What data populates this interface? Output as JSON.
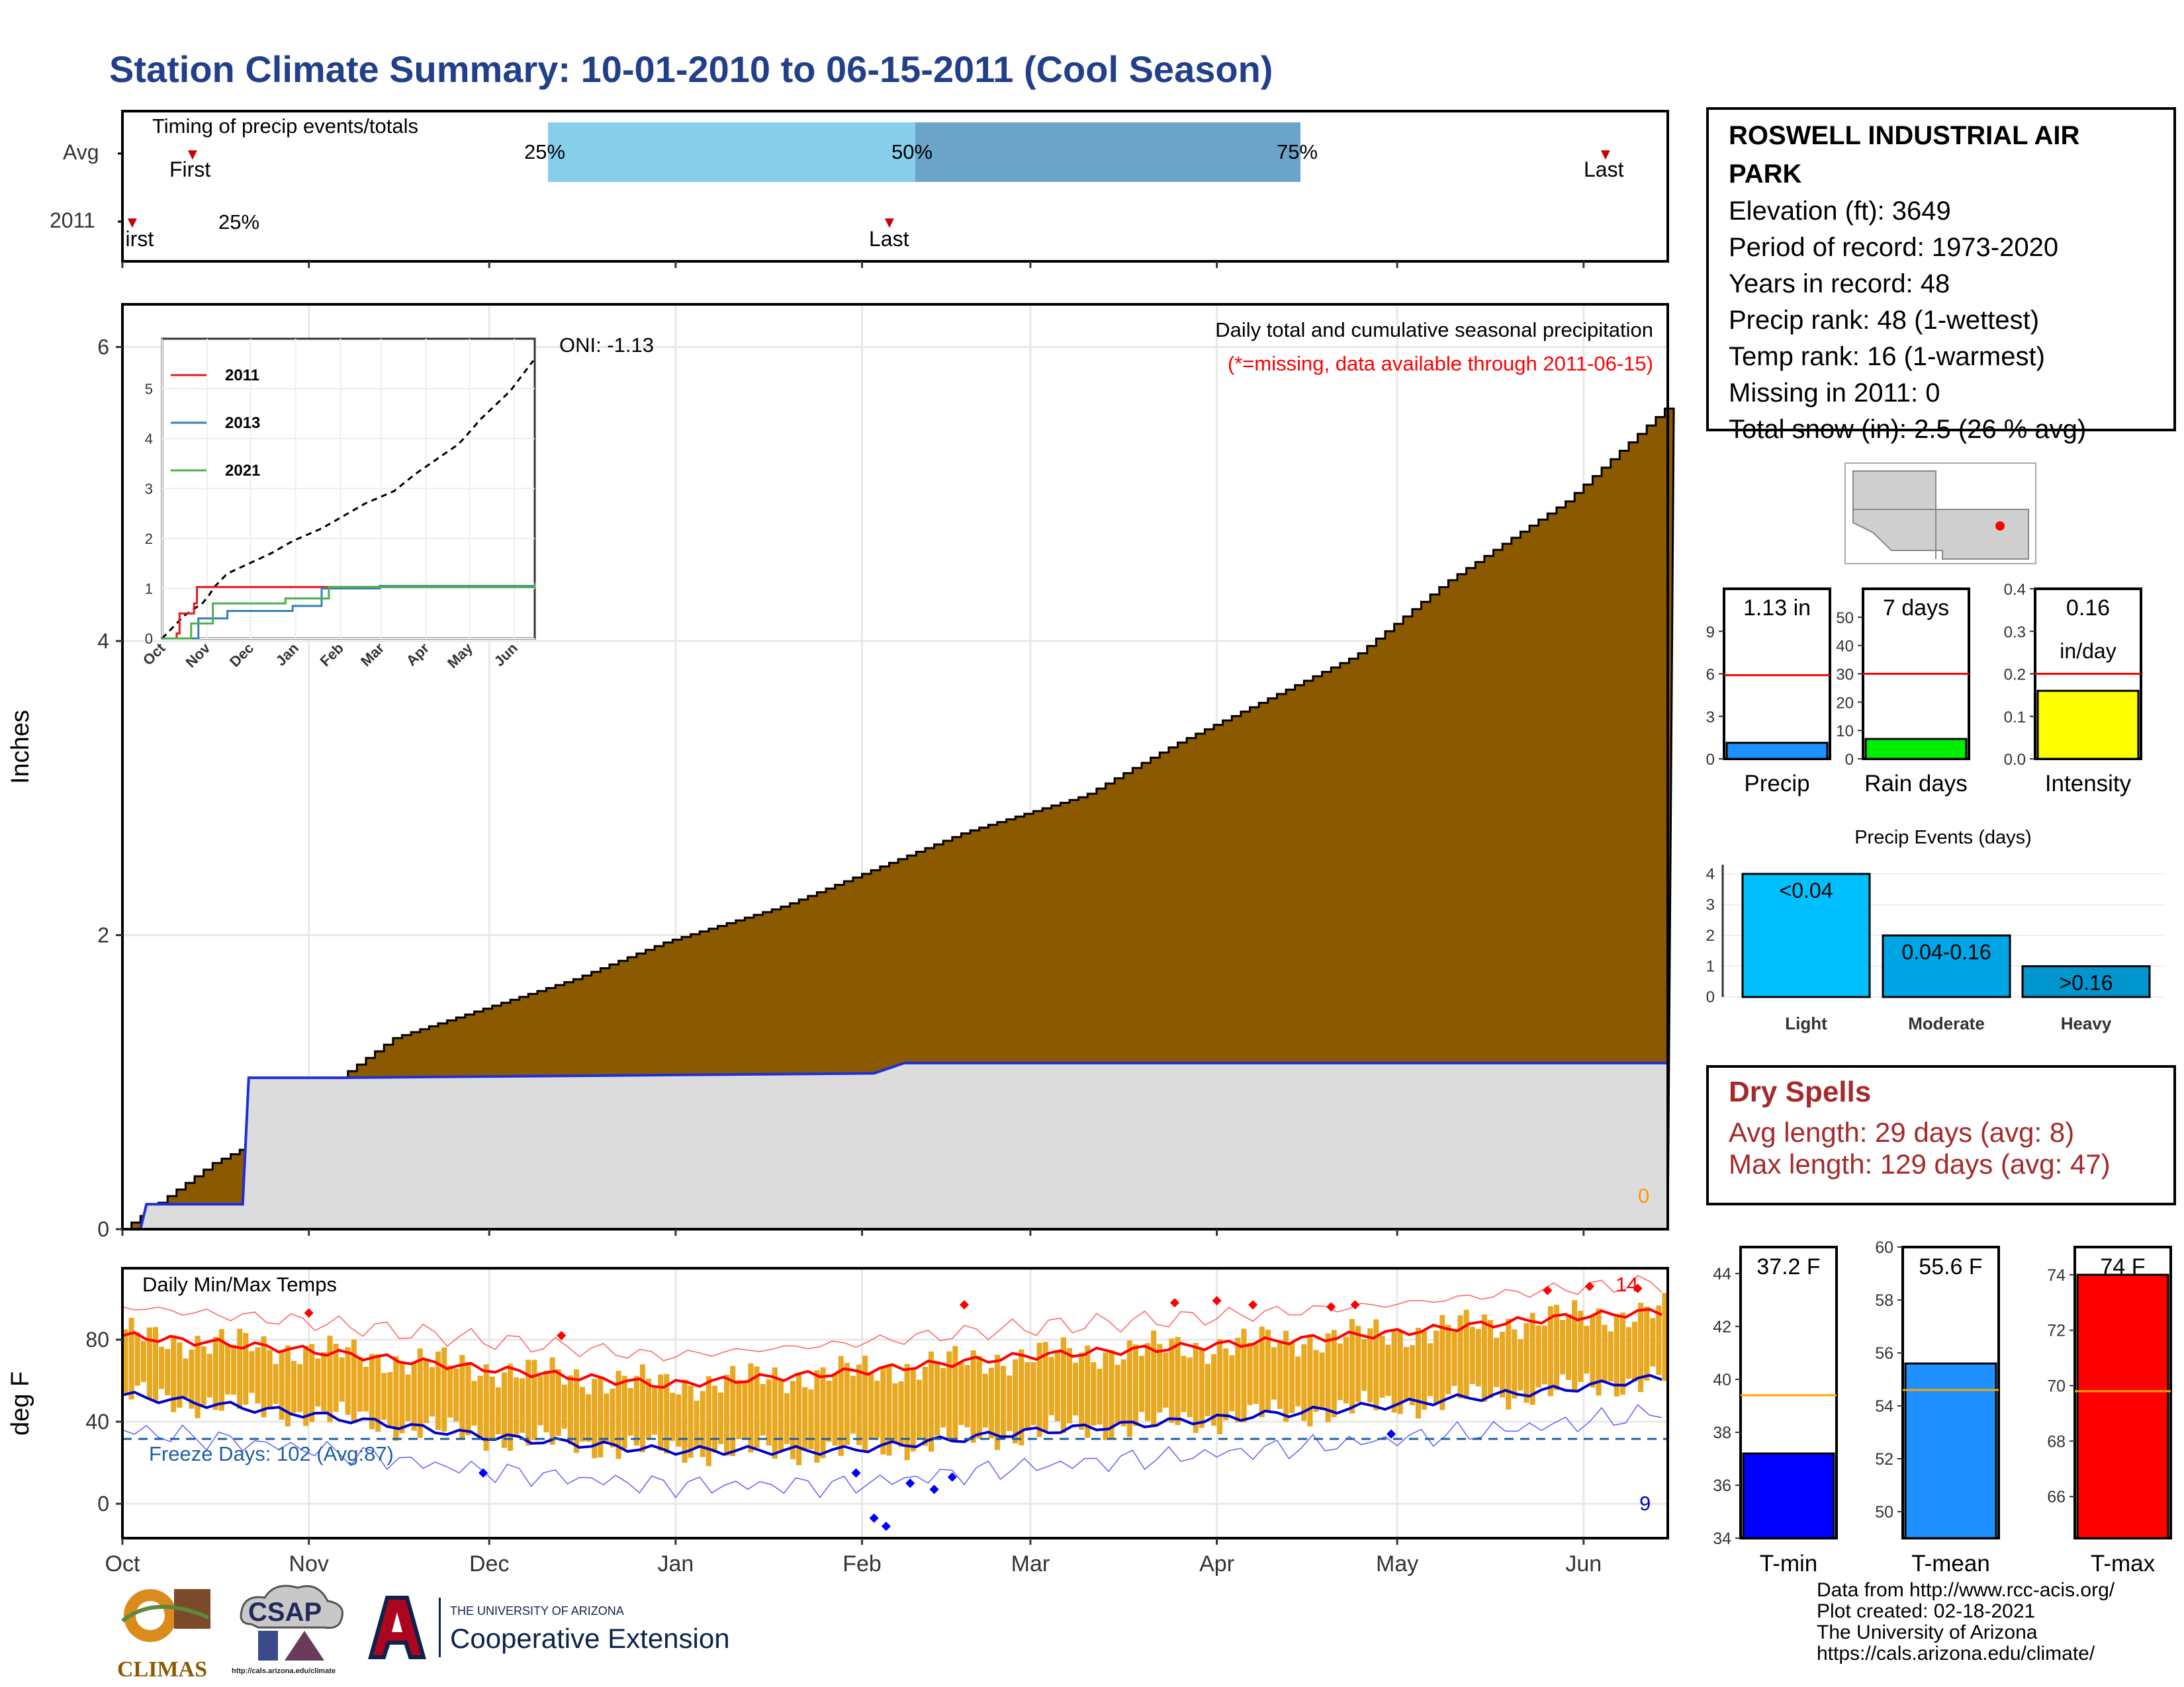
{
  "title": "Station Climate Summary: 10-01-2010 to 06-15-2011 (Cool Season)",
  "colors": {
    "title": "#22408a",
    "cum_fill": "#8b5a00",
    "avg_fill": "#dcdcdc",
    "avg_line": "#1f2fd8",
    "bar_light": "#87ceeb",
    "bar_dark": "#6ca3c9",
    "marker": "#cc0000",
    "temp_bar": "#e8a820",
    "tmax_avg": "#ff0000",
    "tmin_avg": "#0000cc"
  },
  "timing": {
    "label": "Timing of precip events/totals",
    "row_labels": [
      "Avg",
      "2011"
    ],
    "avg_first": "First",
    "avg_last": "Last",
    "p25": "25%",
    "p50": "50%",
    "p75": "75%",
    "y2011_first": "First",
    "y2011_last": "Last",
    "y2011_pct": "25%"
  },
  "station": {
    "name": "ROSWELL INDUSTRIAL AIR PARK",
    "lines": [
      "Elevation (ft): 3649",
      "Period of record: 1973-2020",
      "Years in record: 48",
      "Precip rank: 48 (1-wettest)",
      "Temp rank: 16 (1-warmest)",
      "Missing in 2011: 0",
      "Total snow (in): 2.5 (26 % avg)"
    ]
  },
  "precip_panel": {
    "ylabel": "Inches",
    "oni": "ONI: -1.13",
    "note1": "Daily total and cumulative seasonal precipitation",
    "note2": "(*=missing, data available through 2011-06-15)",
    "missing_count": "0",
    "yticks": [
      "0",
      "2",
      "4",
      "6"
    ]
  },
  "months": [
    "Oct",
    "Nov",
    "Dec",
    "Jan",
    "Feb",
    "Mar",
    "Apr",
    "May",
    "Jun"
  ],
  "inset": {
    "yticks": [
      "0",
      "1",
      "2",
      "3",
      "4",
      "5"
    ],
    "months": [
      "Oct",
      "Nov",
      "Dec",
      "Jan",
      "Feb",
      "Mar",
      "Apr",
      "May",
      "Jun"
    ],
    "legend": [
      "2011",
      "2013",
      "2021"
    ]
  },
  "temp_panel": {
    "ylabel": "deg F",
    "title": "Daily Min/Max Temps",
    "freeze": "Freeze Days: 102 (Avg:87)",
    "max_count": "14",
    "min_count": "9",
    "yticks": [
      "0",
      "40",
      "80"
    ]
  },
  "small_bars": [
    {
      "label": "Precip",
      "value_text": "1.13 in",
      "value": 1.13,
      "avg": 5.9,
      "ymax": 12,
      "ticks": [
        "0",
        "3",
        "6",
        "9"
      ],
      "color": "#1e90ff"
    },
    {
      "label": "Rain days",
      "value_text": "7 days",
      "value": 7,
      "avg": 30,
      "ymax": 60,
      "ticks": [
        "0",
        "10",
        "20",
        "30",
        "40",
        "50"
      ],
      "color": "#00ee00"
    },
    {
      "label": "Intensity",
      "value_text": "0.16",
      "value_text2": "in/day",
      "value": 0.16,
      "avg": 0.2,
      "ymax": 0.4,
      "ticks": [
        "0.0",
        "0.1",
        "0.2",
        "0.3",
        "0.4"
      ],
      "color": "#ffff00"
    }
  ],
  "events": {
    "title": "Precip Events (days)",
    "categories": [
      "Light",
      "Moderate",
      "Heavy"
    ],
    "labels": [
      "<0.04",
      "0.04-0.16",
      ">0.16"
    ],
    "values": [
      4,
      2,
      1
    ],
    "ticks": [
      "0",
      "1",
      "2",
      "3",
      "4"
    ],
    "colors": [
      "#00bfff",
      "#00a5e5",
      "#0095cc"
    ]
  },
  "dry_spells": {
    "title": "Dry Spells",
    "avg": "Avg length: 29 days (avg: 8)",
    "max": "Max length: 129 days (avg: 47)"
  },
  "temp_bars": [
    {
      "label": "T-min",
      "value_text": "37.2 F",
      "value": 37.2,
      "avg": 39.4,
      "ymin": 34,
      "ymax": 45,
      "ticks": [
        "34",
        "36",
        "38",
        "40",
        "42",
        "44"
      ],
      "color": "#0000ff"
    },
    {
      "label": "T-mean",
      "value_text": "55.6 F",
      "value": 55.6,
      "avg": 54.6,
      "ymin": 49,
      "ymax": 60,
      "ticks": [
        "50",
        "52",
        "54",
        "56",
        "58",
        "60"
      ],
      "color": "#1e90ff"
    },
    {
      "label": "T-max",
      "value_text": "74 F",
      "value": 74,
      "avg": 69.8,
      "ymin": 64.5,
      "ymax": 75,
      "ticks": [
        "66",
        "68",
        "70",
        "72",
        "74"
      ],
      "color": "#ff0000"
    }
  ],
  "footer": [
    "Data from http://www.rcc-acis.org/",
    "Plot created: 02-18-2021",
    "The University of Arizona",
    "https://cals.arizona.edu/climate/"
  ],
  "logos": {
    "climas": "CLIMAS",
    "csap": "CSAP",
    "csap_url": "http://cals.arizona.edu/climate",
    "ua_small": "THE UNIVERSITY OF ARIZONA",
    "ua_big": "Cooperative Extension"
  },
  "chart_data": [
    {
      "type": "area",
      "title": "Daily total and cumulative seasonal precipitation",
      "ylabel": "Inches",
      "ylim": [
        0,
        6.2
      ],
      "x_months": [
        "Oct",
        "Nov",
        "Dec",
        "Jan",
        "Feb",
        "Mar",
        "Apr",
        "May",
        "Jun"
      ],
      "series": [
        {
          "name": "cumulative average",
          "x_day": [
            0,
            15,
            30,
            35,
            45,
            60,
            75,
            90,
            110,
            125,
            140,
            160,
            175,
            190,
            205,
            220,
            240,
            257
          ],
          "values": [
            0,
            0.45,
            0.75,
            1.0,
            1.3,
            1.5,
            1.7,
            1.95,
            2.2,
            2.45,
            2.7,
            2.95,
            3.3,
            3.6,
            3.9,
            4.4,
            4.95,
            5.6
          ]
        },
        {
          "name": "2011",
          "x_day": [
            0,
            3,
            4,
            20,
            21,
            36,
            125,
            130,
            257
          ],
          "values": [
            0,
            0,
            0.17,
            0.17,
            1.03,
            1.03,
            1.06,
            1.13,
            1.13
          ]
        }
      ]
    },
    {
      "type": "line",
      "title": "",
      "ylim": [
        0,
        6
      ],
      "series": [
        {
          "name": "2011",
          "x_day": [
            0,
            10,
            12,
            22,
            24,
            120,
            257
          ],
          "values": [
            0,
            0.1,
            0.5,
            0.7,
            1.03,
            1.03,
            1.13
          ]
        },
        {
          "name": "2013",
          "x_day": [
            0,
            25,
            45,
            90,
            110,
            150,
            257
          ],
          "values": [
            0,
            0.4,
            0.55,
            0.65,
            1.0,
            1.05,
            1.1
          ]
        },
        {
          "name": "2021",
          "x_day": [
            0,
            20,
            35,
            85,
            115,
            257
          ],
          "values": [
            0,
            0.3,
            0.7,
            0.8,
            1.03,
            1.08
          ]
        }
      ]
    },
    {
      "type": "bar",
      "title": "Daily Min/Max Temps",
      "ylabel": "deg F",
      "ylim": [
        -18,
        108
      ],
      "series": [
        {
          "name": "avg max",
          "x_day": [
            0,
            30,
            60,
            90,
            120,
            150,
            180,
            210,
            240,
            257
          ],
          "values": [
            82,
            75,
            66,
            58,
            64,
            72,
            77,
            83,
            91,
            94
          ]
        },
        {
          "name": "avg min",
          "x_day": [
            0,
            30,
            60,
            90,
            120,
            150,
            180,
            210,
            240,
            257
          ],
          "values": [
            53,
            44,
            33,
            26,
            26,
            35,
            41,
            48,
            56,
            62
          ]
        }
      ]
    },
    {
      "type": "bar",
      "title": "Precip Events (days)",
      "categories": [
        "Light",
        "Moderate",
        "Heavy"
      ],
      "values": [
        4,
        2,
        1
      ],
      "ylim": [
        0,
        4
      ]
    }
  ]
}
